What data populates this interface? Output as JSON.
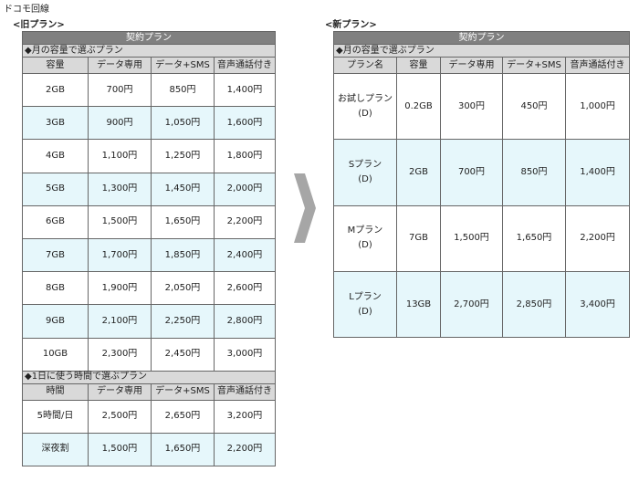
{
  "title": "ドコモ回線",
  "old_plan": {
    "label": "<旧プラン>",
    "header": "契約プラン",
    "sections": [
      {
        "title": "◆月の容量で選ぶプラン",
        "columns": [
          "容量",
          "データ専用",
          "データ+SMS",
          "音声通話付き"
        ],
        "rows": [
          [
            "2GB",
            "700円",
            "850円",
            "1,400円"
          ],
          [
            "3GB",
            "900円",
            "1,050円",
            "1,600円"
          ],
          [
            "4GB",
            "1,100円",
            "1,250円",
            "1,800円"
          ],
          [
            "5GB",
            "1,300円",
            "1,450円",
            "2,000円"
          ],
          [
            "6GB",
            "1,500円",
            "1,650円",
            "2,200円"
          ],
          [
            "7GB",
            "1,700円",
            "1,850円",
            "2,400円"
          ],
          [
            "8GB",
            "1,900円",
            "2,050円",
            "2,600円"
          ],
          [
            "9GB",
            "2,100円",
            "2,250円",
            "2,800円"
          ],
          [
            "10GB",
            "2,300円",
            "2,450円",
            "3,000円"
          ]
        ]
      },
      {
        "title": "◆1日に使う時間で選ぶプラン",
        "columns": [
          "時間",
          "データ専用",
          "データ+SMS",
          "音声通話付き"
        ],
        "rows": [
          [
            "5時間/日",
            "2,500円",
            "2,650円",
            "3,200円"
          ],
          [
            "深夜割",
            "1,500円",
            "1,650円",
            "2,200円"
          ]
        ]
      }
    ]
  },
  "new_plan": {
    "label": "<新プラン>",
    "header": "契約プラン",
    "sections": [
      {
        "title": "◆月の容量で選ぶプラン",
        "columns": [
          "プラン名",
          "容量",
          "データ専用",
          "データ+SMS",
          "音声通話付き"
        ],
        "rows": [
          [
            [
              "お試しプラン",
              "(D)"
            ],
            "0.2GB",
            "300円",
            "450円",
            "1,000円"
          ],
          [
            [
              "Sプラン",
              "(D)"
            ],
            "2GB",
            "700円",
            "850円",
            "1,400円"
          ],
          [
            [
              "Mプラン",
              "(D)"
            ],
            "7GB",
            "1,500円",
            "1,650円",
            "2,200円"
          ],
          [
            [
              "Lプラン",
              "(D)"
            ],
            "13GB",
            "2,700円",
            "2,850円",
            "3,400円"
          ]
        ]
      }
    ]
  }
}
